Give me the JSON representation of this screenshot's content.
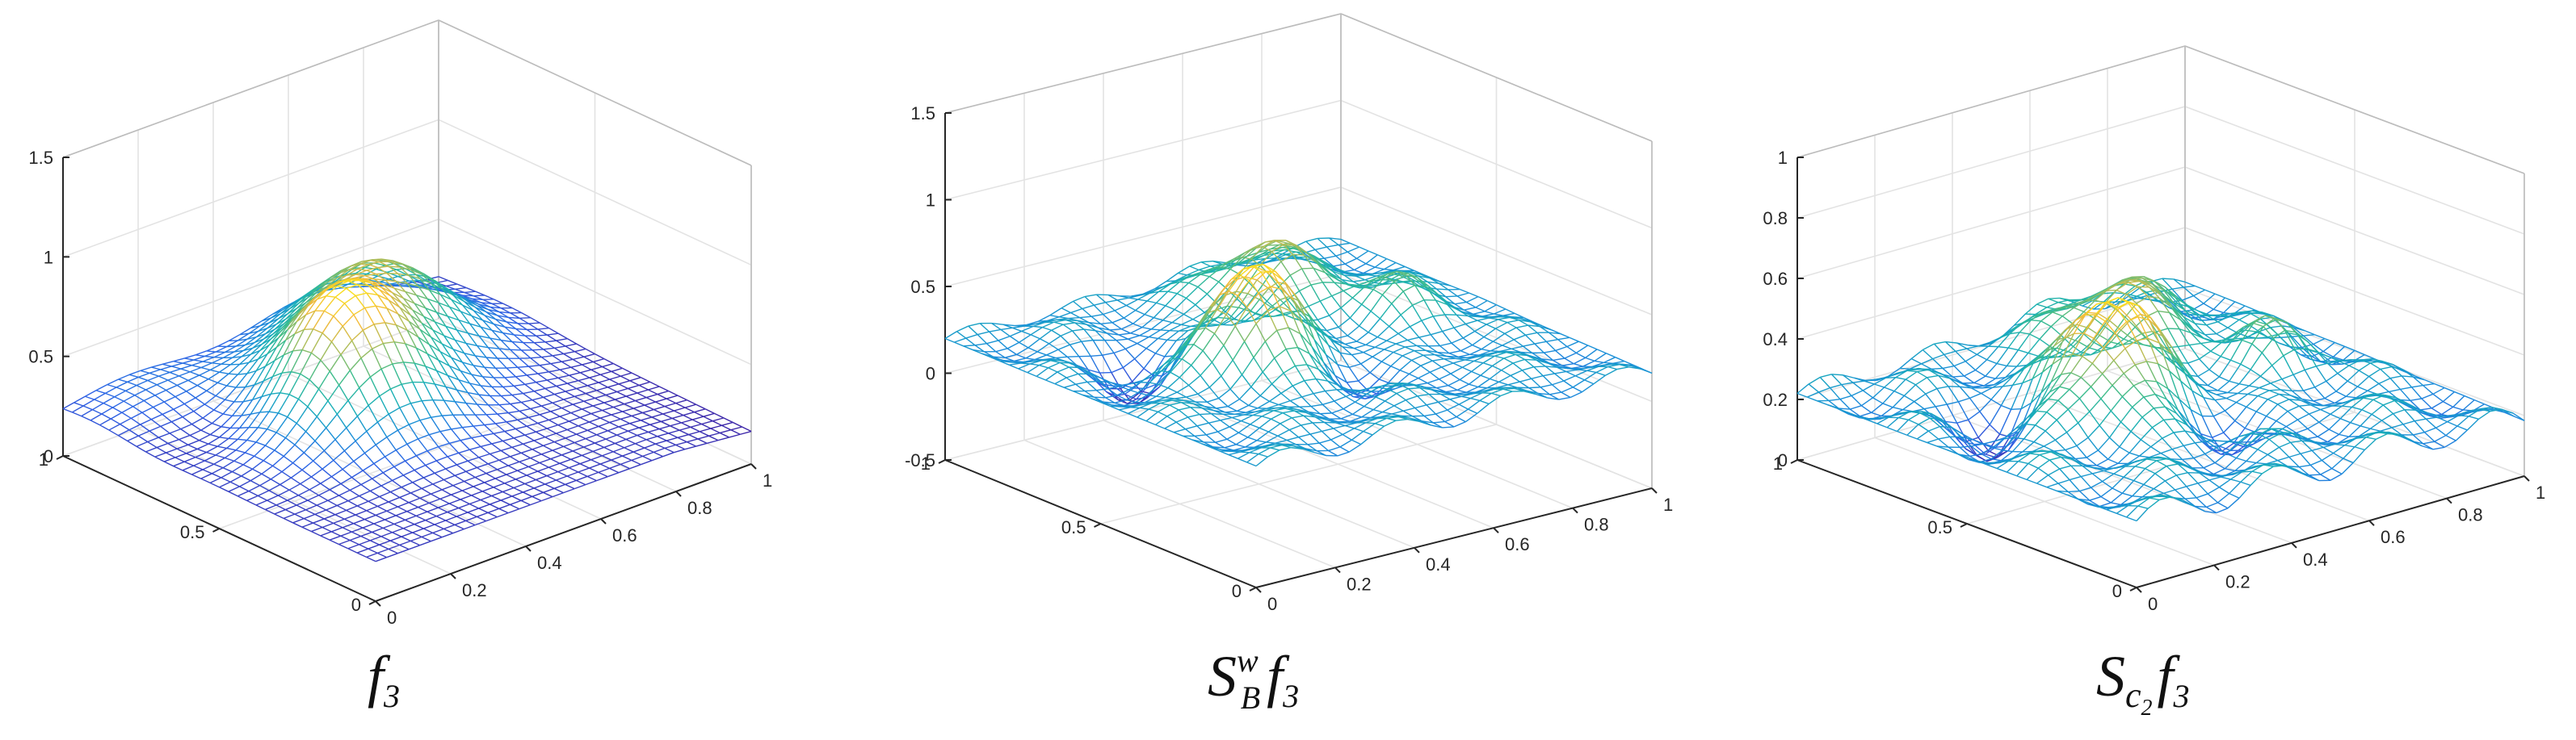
{
  "chart_data": [
    {
      "type": "surface",
      "caption": {
        "base": "f",
        "sub": "3",
        "sup": ""
      },
      "xlim": [
        0,
        1
      ],
      "ylim": [
        0,
        1
      ],
      "zlim": [
        0,
        1.5
      ],
      "xticks": [
        "0",
        "0.2",
        "0.4",
        "0.6",
        "0.8",
        "1"
      ],
      "yticks": [
        "0",
        "0.5",
        "1"
      ],
      "zticks": [
        "0",
        "0.5",
        "1",
        "1.5"
      ],
      "grid": true,
      "colormap": [
        "#3e26a8",
        "#2f64e6",
        "#1a8fd8",
        "#1ab0b6",
        "#3cbc8c",
        "#a3bd5e",
        "#f3bb3a",
        "#f9e21e"
      ],
      "bumps": [
        {
          "x": 0.4,
          "y": 0.58,
          "height": 0.62,
          "width": 0.14
        },
        {
          "x": 0.66,
          "y": 0.78,
          "height": 0.45,
          "width": 0.15
        },
        {
          "x": 0.18,
          "y": 0.92,
          "height": 0.1,
          "width": 0.14
        }
      ],
      "baseline": 0.2,
      "dips": [
        {
          "x": 0.22,
          "y": 0.7,
          "depth": -0.12,
          "width": 0.1
        }
      ]
    },
    {
      "type": "surface",
      "caption": {
        "base": "S",
        "sub": "B",
        "sup": "w",
        "tail": "f",
        "tail_sub": "3"
      },
      "xlim": [
        0,
        1
      ],
      "ylim": [
        0,
        1
      ],
      "zlim": [
        -0.5,
        1.5
      ],
      "xticks": [
        "0",
        "0.2",
        "0.4",
        "0.6",
        "0.8",
        "1"
      ],
      "yticks": [
        "0",
        "0.5",
        "1"
      ],
      "zticks": [
        "-0.5",
        "0",
        "0.5",
        "1",
        "1.5"
      ],
      "grid": true,
      "colormap": [
        "#3e26a8",
        "#2f64e6",
        "#1a8fd8",
        "#1ab0b6",
        "#3cbc8c",
        "#a3bd5e",
        "#f3bb3a",
        "#f9e21e"
      ],
      "bumps": [
        {
          "x": 0.38,
          "y": 0.5,
          "height": 0.62,
          "width": 0.09
        },
        {
          "x": 0.65,
          "y": 0.78,
          "height": 0.35,
          "width": 0.1
        },
        {
          "x": 0.8,
          "y": 0.55,
          "height": 0.2,
          "width": 0.08
        }
      ],
      "baseline": 0.2,
      "dips": [
        {
          "x": 0.25,
          "y": 0.68,
          "depth": -0.25,
          "width": 0.08
        },
        {
          "x": 0.55,
          "y": 0.35,
          "depth": -0.15,
          "width": 0.07
        }
      ],
      "ripple": 0.06
    },
    {
      "type": "surface",
      "caption": {
        "base": "S",
        "sub": "c",
        "sub_sub": "2",
        "tail": "f",
        "tail_sub": "3"
      },
      "xlim": [
        0,
        1
      ],
      "ylim": [
        0,
        1
      ],
      "zlim": [
        0,
        1
      ],
      "xticks": [
        "0",
        "0.2",
        "0.4",
        "0.6",
        "0.8",
        "1"
      ],
      "yticks": [
        "0",
        "0.5",
        "1"
      ],
      "zticks": [
        "0",
        "0.2",
        "0.4",
        "0.6",
        "0.8",
        "1"
      ],
      "grid": true,
      "colormap": [
        "#3e26a8",
        "#2f64e6",
        "#1a8fd8",
        "#1ab0b6",
        "#3cbc8c",
        "#a3bd5e",
        "#f3bb3a",
        "#f9e21e"
      ],
      "bumps": [
        {
          "x": 0.4,
          "y": 0.55,
          "height": 0.36,
          "width": 0.1
        },
        {
          "x": 0.66,
          "y": 0.8,
          "height": 0.22,
          "width": 0.11
        },
        {
          "x": 0.8,
          "y": 0.5,
          "height": 0.12,
          "width": 0.07
        }
      ],
      "baseline": 0.22,
      "dips": [
        {
          "x": 0.24,
          "y": 0.66,
          "depth": -0.16,
          "width": 0.08
        },
        {
          "x": 0.55,
          "y": 0.35,
          "depth": -0.1,
          "width": 0.07
        }
      ],
      "ripple": 0.05
    }
  ]
}
